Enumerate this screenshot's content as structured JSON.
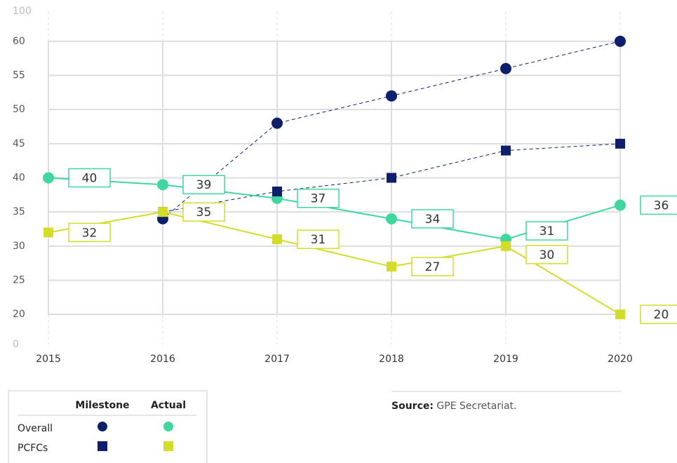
{
  "chart_data": {
    "type": "line",
    "x": [
      2015,
      2016,
      2017,
      2018,
      2019,
      2020
    ],
    "ylim": [
      0,
      100
    ],
    "yticks": [
      0,
      20,
      25,
      30,
      35,
      40,
      45,
      50,
      55,
      60,
      100
    ],
    "columns": [
      "Milestone",
      "Actual"
    ],
    "groups": [
      {
        "name": "Overall",
        "marker": "circle",
        "milestone": {
          "color": "#0d1f6b",
          "values": [
            null,
            34,
            48,
            52,
            56,
            60
          ]
        },
        "actual": {
          "color": "#3fd6a0",
          "values": [
            40,
            39,
            37,
            34,
            31,
            36
          ]
        }
      },
      {
        "name": "PCFCs",
        "marker": "square",
        "milestone": {
          "color": "#0d1f6b",
          "values": [
            null,
            35,
            38,
            40,
            44,
            45
          ]
        },
        "actual": {
          "color": "#d4dc2a",
          "values": [
            32,
            35,
            31,
            27,
            30,
            20
          ]
        }
      }
    ],
    "grid": true,
    "source": {
      "label": "Source:",
      "text": "GPE Secretariat."
    }
  }
}
